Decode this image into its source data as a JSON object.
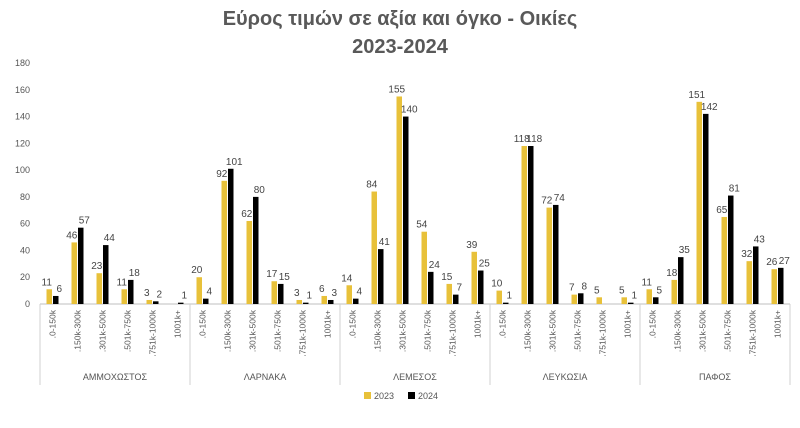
{
  "chart_data": {
    "type": "bar",
    "title_line1": "Εύρος τιμών σε αξία και όγκο - Οικίες",
    "title_line2": "2023-2024",
    "ylim": [
      0,
      180
    ],
    "yticks": [
      0,
      20,
      40,
      60,
      80,
      100,
      120,
      140,
      160,
      180
    ],
    "grid": false,
    "legend_position": "bottom",
    "groups": [
      {
        "name": "ΑΜΜΟΧΩΣΤΟΣ",
        "categories": [
          ".0-150k",
          ".150k-300k",
          ".301k-500k",
          ".501k-750k",
          ".751k-1000k",
          "1001k+"
        ],
        "values_2023": [
          11,
          46,
          23,
          11,
          3,
          null
        ],
        "values_2024": [
          6,
          57,
          44,
          18,
          2,
          1
        ]
      },
      {
        "name": "ΛΑΡΝΑΚΑ",
        "categories": [
          ".0-150k",
          ".150k-300k",
          ".301k-500k",
          ".501k-750k",
          ".751k-1000k",
          "1001k+"
        ],
        "values_2023": [
          20,
          92,
          62,
          17,
          3,
          6
        ],
        "values_2024": [
          4,
          101,
          80,
          15,
          1,
          3
        ]
      },
      {
        "name": "ΛΕΜΕΣΟΣ",
        "categories": [
          ".0-150k",
          ".150k-300k",
          ".301k-500k",
          ".501k-750k",
          ".751k-1000k",
          "1001k+"
        ],
        "values_2023": [
          14,
          84,
          155,
          54,
          15,
          39
        ],
        "values_2024": [
          4,
          41,
          140,
          24,
          7,
          25
        ]
      },
      {
        "name": "ΛΕΥΚΩΣΙΑ",
        "categories": [
          ".0-150k",
          ".150k-300k",
          ".301k-500k",
          ".501k-750k",
          ".751k-1000k",
          "1001k+"
        ],
        "values_2023": [
          10,
          118,
          72,
          7,
          5,
          5
        ],
        "values_2024": [
          1,
          118,
          74,
          8,
          null,
          1
        ]
      },
      {
        "name": "ΠΑΦΟΣ",
        "categories": [
          ".0-150k",
          ".150k-300k",
          ".301k-500k",
          ".501k-750k",
          ".751k-1000k",
          "1001k+"
        ],
        "values_2023": [
          11,
          18,
          151,
          65,
          32,
          26
        ],
        "values_2024": [
          5,
          35,
          142,
          81,
          43,
          27
        ]
      }
    ],
    "series": [
      {
        "name": "2023",
        "color": "#E8C13A"
      },
      {
        "name": "2024",
        "color": "#000000"
      }
    ]
  }
}
